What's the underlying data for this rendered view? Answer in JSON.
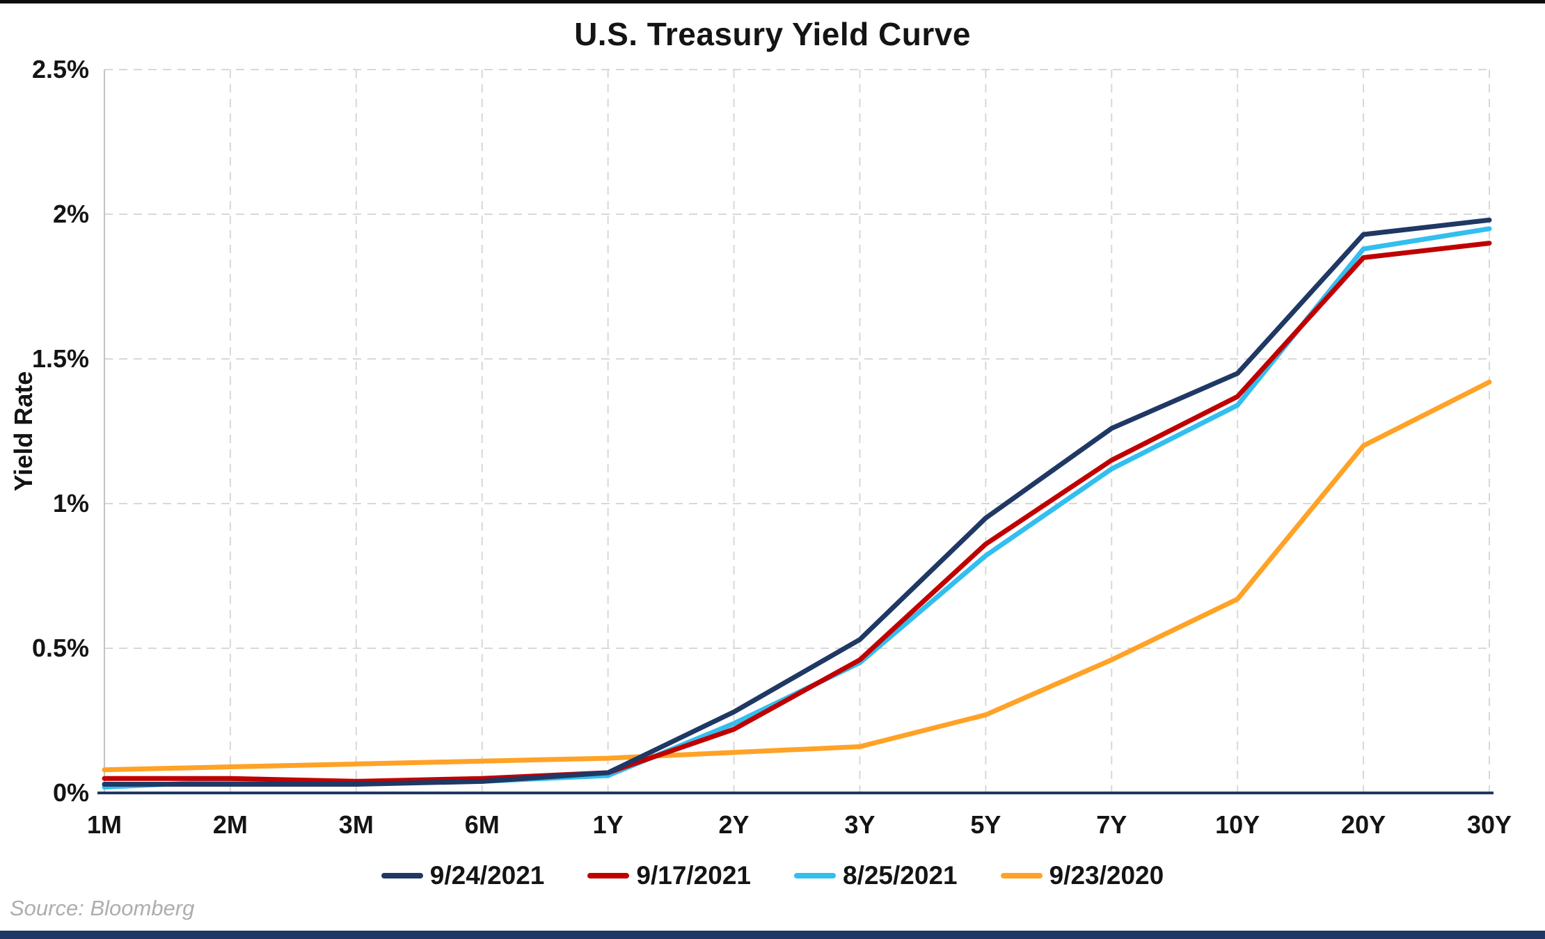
{
  "source": "Source: Bloomberg",
  "chart_data": {
    "type": "line",
    "title": "U.S. Treasury Yield Curve",
    "xlabel": "",
    "ylabel": "Yield Rate",
    "categories": [
      "1M",
      "2M",
      "3M",
      "6M",
      "1Y",
      "2Y",
      "3Y",
      "5Y",
      "7Y",
      "10Y",
      "20Y",
      "30Y"
    ],
    "ylim": [
      0,
      2.5
    ],
    "y_tick_labels": [
      "0%",
      "0.5%",
      "1%",
      "1.5%",
      "2%",
      "2.5%"
    ],
    "grid": "dashed-both",
    "legend_position": "bottom",
    "series": [
      {
        "name": "9/24/2021",
        "color": "#1F3864",
        "values": [
          0.03,
          0.03,
          0.03,
          0.04,
          0.07,
          0.28,
          0.53,
          0.95,
          1.26,
          1.45,
          1.93,
          1.98
        ]
      },
      {
        "name": "9/17/2021",
        "color": "#C00000",
        "values": [
          0.05,
          0.05,
          0.04,
          0.05,
          0.07,
          0.22,
          0.46,
          0.86,
          1.15,
          1.37,
          1.85,
          1.9
        ]
      },
      {
        "name": "8/25/2021",
        "color": "#33BEEF",
        "values": [
          0.02,
          0.04,
          0.04,
          0.04,
          0.06,
          0.24,
          0.45,
          0.82,
          1.12,
          1.34,
          1.88,
          1.95
        ]
      },
      {
        "name": "9/23/2020",
        "color": "#FFA226",
        "values": [
          0.08,
          0.09,
          0.1,
          0.11,
          0.12,
          0.14,
          0.16,
          0.27,
          0.46,
          0.67,
          1.2,
          1.42
        ]
      }
    ]
  }
}
